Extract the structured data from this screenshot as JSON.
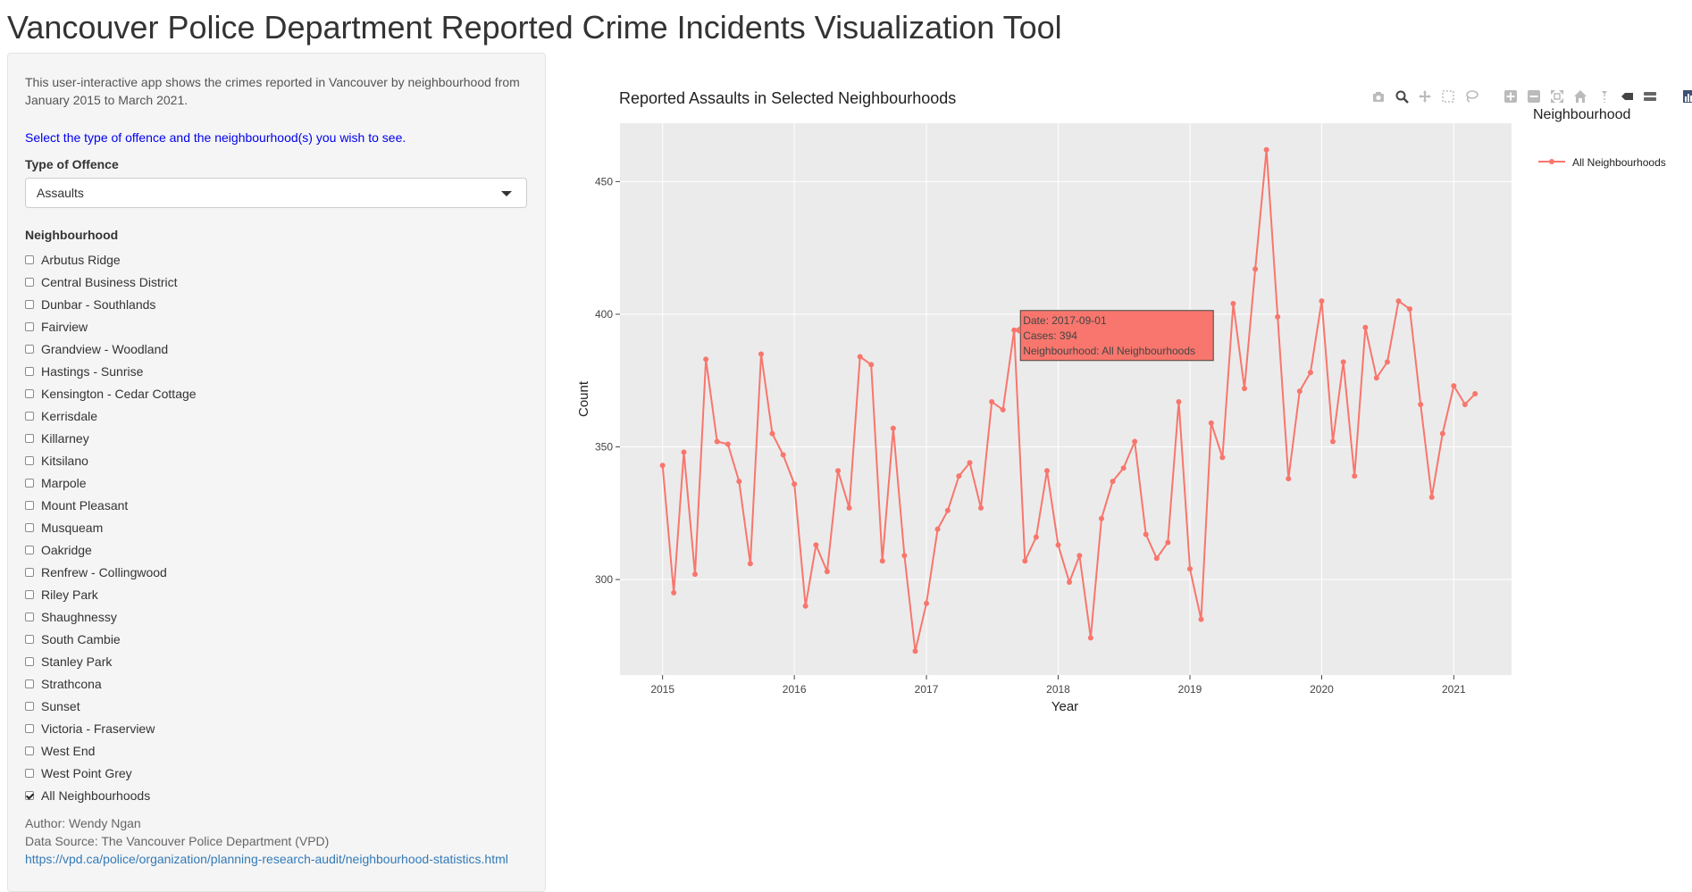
{
  "title": "Vancouver Police Department Reported Crime Incidents Visualization Tool",
  "sidebar": {
    "intro": "This user-interactive app shows the crimes reported in Vancouver by neighbourhood from January 2015 to March 2021.",
    "prompt": "Select the type of offence and the neighbourhood(s) you wish to see.",
    "offence_label": "Type of Offence",
    "offence_value": "Assaults",
    "neighbourhood_label": "Neighbourhood",
    "neighbourhoods": [
      {
        "label": "Arbutus Ridge",
        "checked": false
      },
      {
        "label": "Central Business District",
        "checked": false
      },
      {
        "label": "Dunbar - Southlands",
        "checked": false
      },
      {
        "label": "Fairview",
        "checked": false
      },
      {
        "label": "Grandview - Woodland",
        "checked": false
      },
      {
        "label": "Hastings - Sunrise",
        "checked": false
      },
      {
        "label": "Kensington - Cedar Cottage",
        "checked": false
      },
      {
        "label": "Kerrisdale",
        "checked": false
      },
      {
        "label": "Killarney",
        "checked": false
      },
      {
        "label": "Kitsilano",
        "checked": false
      },
      {
        "label": "Marpole",
        "checked": false
      },
      {
        "label": "Mount Pleasant",
        "checked": false
      },
      {
        "label": "Musqueam",
        "checked": false
      },
      {
        "label": "Oakridge",
        "checked": false
      },
      {
        "label": "Renfrew - Collingwood",
        "checked": false
      },
      {
        "label": "Riley Park",
        "checked": false
      },
      {
        "label": "Shaughnessy",
        "checked": false
      },
      {
        "label": "South Cambie",
        "checked": false
      },
      {
        "label": "Stanley Park",
        "checked": false
      },
      {
        "label": "Strathcona",
        "checked": false
      },
      {
        "label": "Sunset",
        "checked": false
      },
      {
        "label": "Victoria - Fraserview",
        "checked": false
      },
      {
        "label": "West End",
        "checked": false
      },
      {
        "label": "West Point Grey",
        "checked": false
      },
      {
        "label": "All Neighbourhoods",
        "checked": true
      }
    ],
    "author": "Author: Wendy Ngan",
    "source": "Data Source: The Vancouver Police Department (VPD)",
    "source_link": "https://vpd.ca/police/organization/planning-research-audit/neighbourhood-statistics.html"
  },
  "modebar_icons": [
    "camera-icon",
    "zoom-icon",
    "pan-icon",
    "box-select-icon",
    "lasso-icon",
    "zoom-in-icon",
    "zoom-out-icon",
    "autoscale-icon",
    "reset-axes-icon",
    "spike-lines-icon",
    "hover-closest-icon",
    "hover-compare-icon",
    "plotly-logo-icon"
  ],
  "tooltip": {
    "date": "Date:  2017-09-01",
    "cases": "Cases:  394",
    "neighbourhood": "Neighbourhood: All Neighbourhoods",
    "color": "#f8766d"
  },
  "chart_data": {
    "type": "line",
    "title": "Reported Assaults in Selected Neighbourhoods",
    "xlabel": "Year",
    "ylabel": "Count",
    "xlim": [
      "2014-09-05",
      "2021-06-10"
    ],
    "ylim": [
      264,
      472
    ],
    "x_ticks": [
      "2015",
      "2016",
      "2017",
      "2018",
      "2019",
      "2020",
      "2021"
    ],
    "y_ticks": [
      300,
      350,
      400,
      450
    ],
    "grid": true,
    "background": "#ebebeb",
    "legend_title": "Neighbourhood",
    "legend_position": "right",
    "series": [
      {
        "name": "All Neighbourhoods",
        "color": "#f8766d",
        "x": [
          "2015-01-01",
          "2015-02-01",
          "2015-03-01",
          "2015-04-01",
          "2015-05-01",
          "2015-06-01",
          "2015-07-01",
          "2015-08-01",
          "2015-09-01",
          "2015-10-01",
          "2015-11-01",
          "2015-12-01",
          "2016-01-01",
          "2016-02-01",
          "2016-03-01",
          "2016-04-01",
          "2016-05-01",
          "2016-06-01",
          "2016-07-01",
          "2016-08-01",
          "2016-09-01",
          "2016-10-01",
          "2016-11-01",
          "2016-12-01",
          "2017-01-01",
          "2017-02-01",
          "2017-03-01",
          "2017-04-01",
          "2017-05-01",
          "2017-06-01",
          "2017-07-01",
          "2017-08-01",
          "2017-09-01",
          "2017-10-01",
          "2017-11-01",
          "2017-12-01",
          "2018-01-01",
          "2018-02-01",
          "2018-03-01",
          "2018-04-01",
          "2018-05-01",
          "2018-06-01",
          "2018-07-01",
          "2018-08-01",
          "2018-09-01",
          "2018-10-01",
          "2018-11-01",
          "2018-12-01",
          "2019-01-01",
          "2019-02-01",
          "2019-03-01",
          "2019-04-01",
          "2019-05-01",
          "2019-06-01",
          "2019-07-01",
          "2019-08-01",
          "2019-09-01",
          "2019-10-01",
          "2019-11-01",
          "2019-12-01",
          "2020-01-01",
          "2020-02-01",
          "2020-03-01",
          "2020-04-01",
          "2020-05-01",
          "2020-06-01",
          "2020-07-01",
          "2020-08-01",
          "2020-09-01",
          "2020-10-01",
          "2020-11-01",
          "2020-12-01",
          "2021-01-01",
          "2021-02-01",
          "2021-03-01"
        ],
        "y": [
          343,
          295,
          348,
          302,
          383,
          352,
          351,
          337,
          306,
          385,
          355,
          347,
          336,
          290,
          313,
          303,
          341,
          327,
          384,
          381,
          307,
          357,
          309,
          273,
          291,
          319,
          326,
          339,
          344,
          327,
          367,
          364,
          394,
          307,
          316,
          341,
          313,
          299,
          309,
          278,
          323,
          337,
          342,
          352,
          317,
          308,
          314,
          367,
          304,
          285,
          359,
          346,
          404,
          372,
          417,
          462,
          399,
          338,
          371,
          378,
          405,
          352,
          382,
          339,
          395,
          376,
          382,
          405,
          402,
          366,
          331,
          355,
          373,
          366,
          370
        ]
      }
    ]
  }
}
